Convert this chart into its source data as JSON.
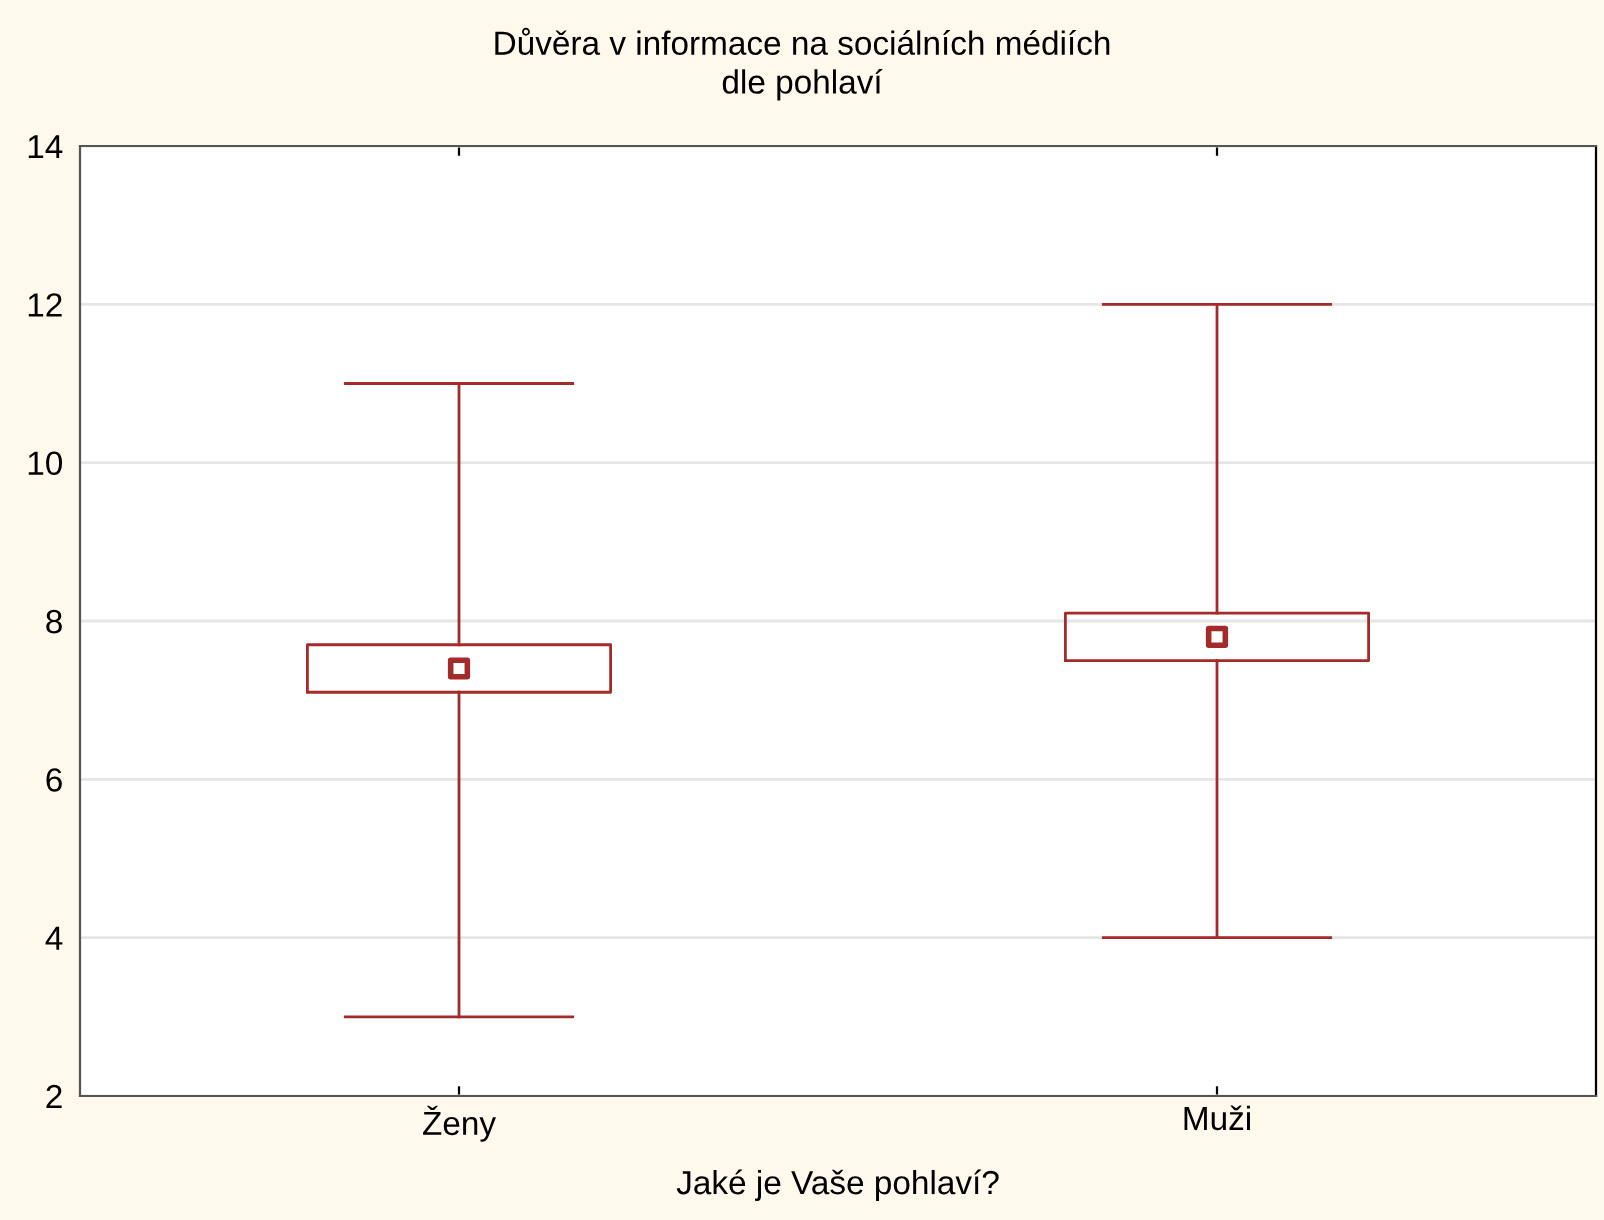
{
  "chart_data": {
    "type": "box",
    "title": "Důvěra v informace na sociálních médiích\ndle pohlaví",
    "xlabel": "Jaké je Vaše pohlaví?",
    "categories": [
      "Ženy",
      "Muži"
    ],
    "color": "#a52a2a",
    "boxes": [
      {
        "low": 3,
        "q1": 7.1,
        "median": 7.4,
        "q3": 7.7,
        "high": 11
      },
      {
        "low": 4,
        "q1": 7.5,
        "median": 7.8,
        "q3": 8.1,
        "high": 12
      }
    ],
    "marker": "square",
    "ylim": [
      2,
      14
    ],
    "yticks": [
      2,
      4,
      6,
      8,
      10,
      12,
      14
    ],
    "grid": "y",
    "legend": false
  }
}
